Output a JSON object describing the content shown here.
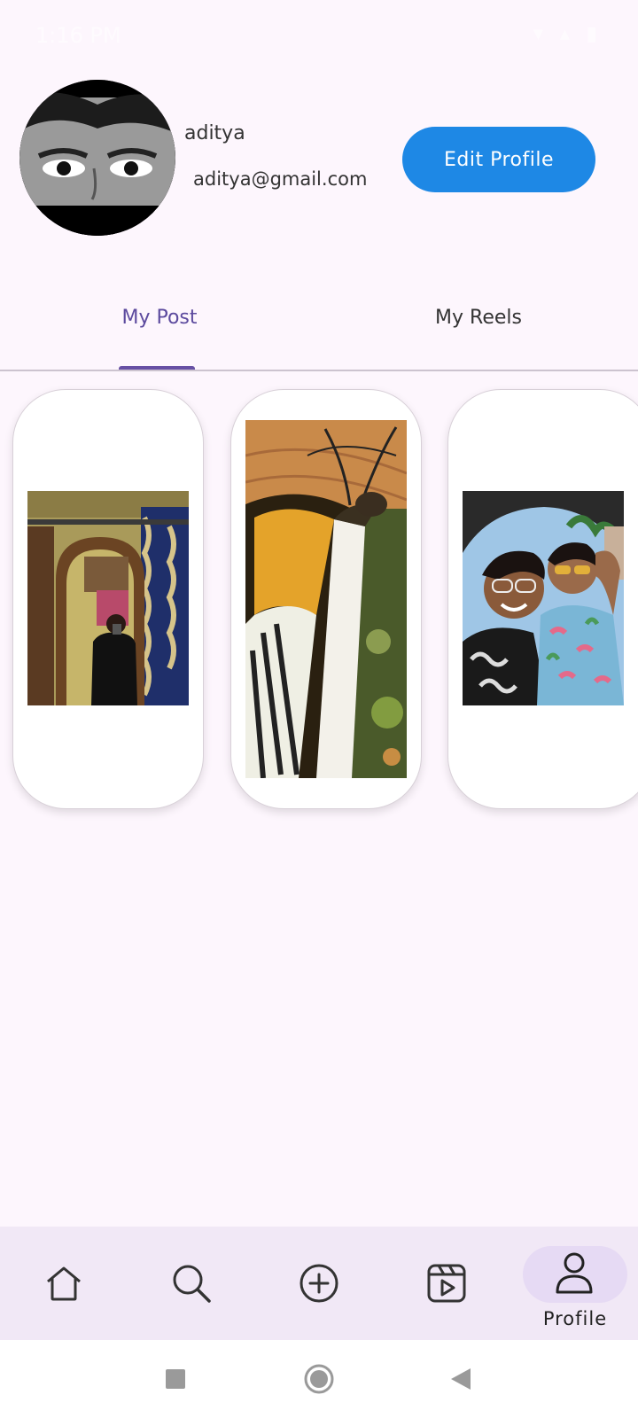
{
  "status_bar": {
    "time": "1:16 PM",
    "icons": [
      "notification-icons",
      "wifi-icon",
      "signal-icon",
      "battery-icon"
    ]
  },
  "profile": {
    "username": "aditya",
    "email": "aditya@gmail.com",
    "edit_button_label": "Edit Profile"
  },
  "tabs": [
    {
      "label": "My Post",
      "selected": true
    },
    {
      "label": "My Reels",
      "selected": false
    }
  ],
  "posts": [
    {
      "subject": "mirror-selfie"
    },
    {
      "subject": "butterfly-closeup"
    },
    {
      "subject": "two-friends-selfie"
    }
  ],
  "bottom_nav": {
    "items": [
      {
        "icon": "home-icon"
      },
      {
        "icon": "search-icon"
      },
      {
        "icon": "add-circle-icon"
      },
      {
        "icon": "reels-icon"
      },
      {
        "icon": "profile-icon",
        "label": "Profile",
        "selected": true
      }
    ]
  },
  "colors": {
    "background": "#fdf6fd",
    "accent": "#6750a4",
    "button": "#1e88e5",
    "nav_background": "#f1e8f6"
  }
}
